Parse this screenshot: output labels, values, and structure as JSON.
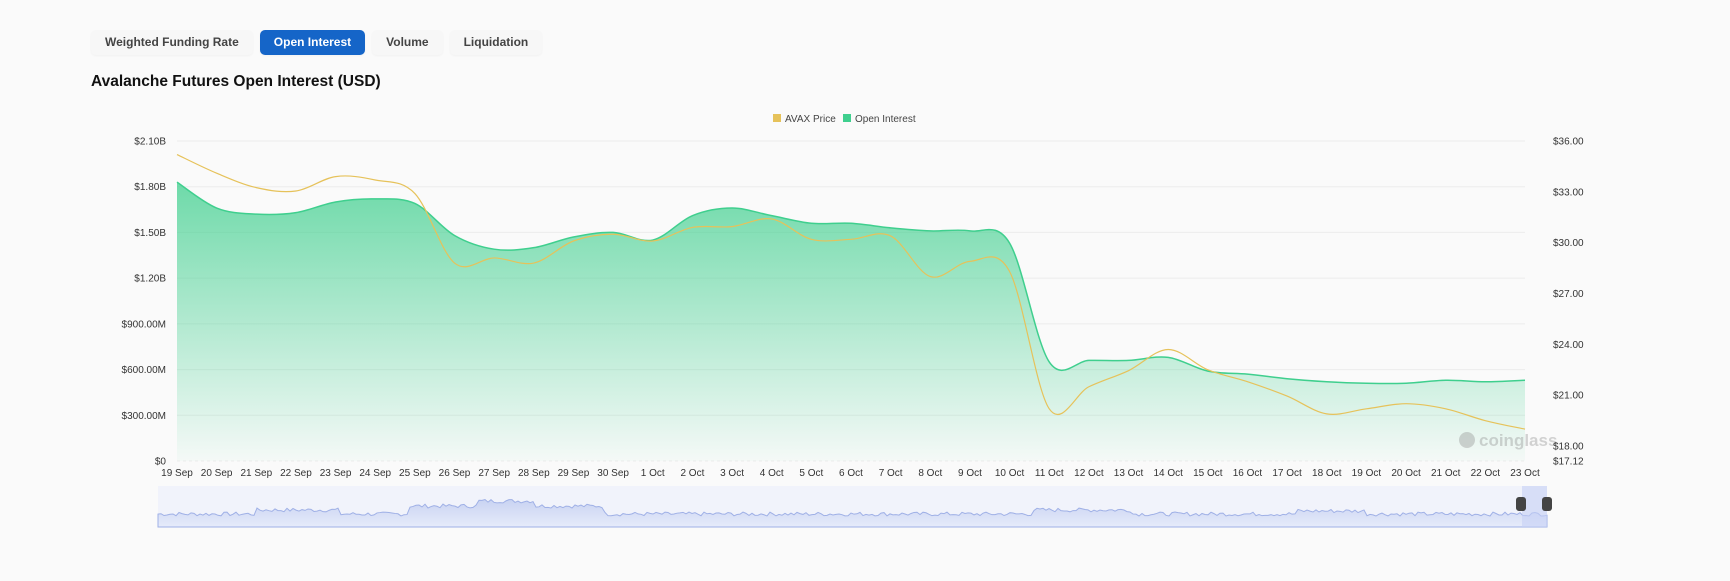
{
  "tabs": [
    {
      "label": "Weighted Funding Rate"
    },
    {
      "label": "Open Interest",
      "active": true
    },
    {
      "label": "Volume"
    },
    {
      "label": "Liquidation"
    }
  ],
  "chart_title": "Avalanche Futures Open Interest (USD)",
  "watermark": "coinglass",
  "chart_data": {
    "type": "area",
    "title": "Avalanche Futures Open Interest (USD)",
    "legend": [
      {
        "name": "AVAX Price",
        "color": "#e6c25a"
      },
      {
        "name": "Open Interest",
        "color": "#3fcf8e"
      }
    ],
    "legend_position": "top-center",
    "categories": [
      "19 Sep",
      "20 Sep",
      "21 Sep",
      "22 Sep",
      "23 Sep",
      "24 Sep",
      "25 Sep",
      "26 Sep",
      "27 Sep",
      "28 Sep",
      "29 Sep",
      "30 Sep",
      "1 Oct",
      "2 Oct",
      "3 Oct",
      "4 Oct",
      "5 Oct",
      "6 Oct",
      "7 Oct",
      "8 Oct",
      "9 Oct",
      "10 Oct",
      "11 Oct",
      "12 Oct",
      "13 Oct",
      "14 Oct",
      "15 Oct",
      "16 Oct",
      "17 Oct",
      "18 Oct",
      "19 Oct",
      "20 Oct",
      "21 Oct",
      "22 Oct",
      "23 Oct"
    ],
    "series": [
      {
        "name": "Open Interest",
        "axis": "left",
        "unit": "USD billions",
        "values": [
          1.83,
          1.66,
          1.62,
          1.63,
          1.7,
          1.72,
          1.69,
          1.48,
          1.39,
          1.4,
          1.47,
          1.5,
          1.45,
          1.61,
          1.66,
          1.61,
          1.56,
          1.56,
          1.53,
          1.51,
          1.51,
          1.43,
          0.65,
          0.66,
          0.66,
          0.68,
          0.59,
          0.57,
          0.54,
          0.52,
          0.51,
          0.51,
          0.53,
          0.52,
          0.53
        ]
      },
      {
        "name": "AVAX Price",
        "axis": "right",
        "unit": "USD",
        "values": [
          35.2,
          34.1,
          33.25,
          33.05,
          33.9,
          33.7,
          32.9,
          28.8,
          29.1,
          28.8,
          30.1,
          30.5,
          30.1,
          30.9,
          30.95,
          31.4,
          30.2,
          30.2,
          30.4,
          28.0,
          28.9,
          28.3,
          20.2,
          21.5,
          22.45,
          23.7,
          22.5,
          21.8,
          20.95,
          19.9,
          20.2,
          20.5,
          20.2,
          19.5,
          19.0
        ]
      }
    ],
    "left_axis": {
      "ylim": [
        0,
        2.1
      ],
      "ticks": [
        0,
        0.3,
        0.6,
        0.9,
        1.2,
        1.5,
        1.8,
        2.1
      ],
      "tick_labels": [
        "$0",
        "$300.00M",
        "$600.00M",
        "$900.00M",
        "$1.20B",
        "$1.50B",
        "$1.80B",
        "$2.10B"
      ]
    },
    "right_axis": {
      "ylim": [
        17.12,
        36
      ],
      "ticks": [
        17.12,
        18,
        21,
        24,
        27,
        30,
        33,
        36
      ],
      "tick_labels": [
        "$17.12",
        "$18.00",
        "$21.00",
        "$24.00",
        "$27.00",
        "$30.00",
        "$33.00",
        "$36.00"
      ]
    },
    "grid": true
  }
}
